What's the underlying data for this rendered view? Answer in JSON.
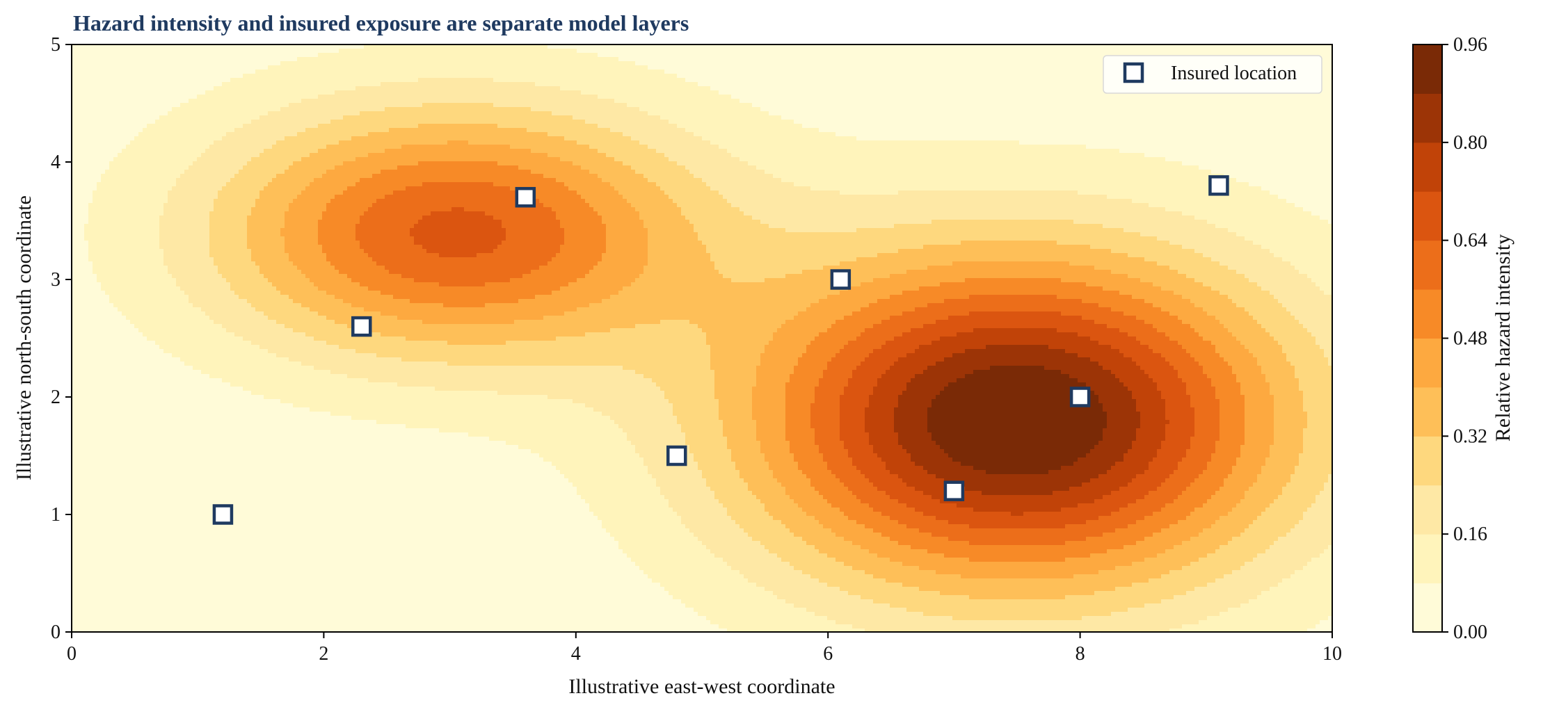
{
  "chart_data": {
    "type": "contour",
    "title": "Hazard intensity and insured exposure are separate model layers",
    "xlabel": "Illustrative east-west coordinate",
    "ylabel": "Illustrative north-south coordinate",
    "xlim": [
      0,
      10
    ],
    "ylim": [
      0,
      5
    ],
    "x_ticks": [
      "0",
      "2",
      "4",
      "6",
      "8",
      "10"
    ],
    "y_ticks": [
      "0",
      "1",
      "2",
      "3",
      "4",
      "5"
    ],
    "grid": false,
    "colorbar": {
      "label": "Relative hazard intensity",
      "range": [
        0,
        0.96
      ],
      "levels": [
        0,
        0.08,
        0.16,
        0.24,
        0.32,
        0.4,
        0.48,
        0.56,
        0.64,
        0.72,
        0.8,
        0.88,
        0.96
      ],
      "tick_labels": [
        "0.00",
        "0.16",
        "0.32",
        "0.48",
        "0.64",
        "0.80",
        "0.96"
      ],
      "colors": [
        "#fffbd8",
        "#fff4bb",
        "#fee8a5",
        "#fed87e",
        "#febf58",
        "#fda940",
        "#f78a27",
        "#ec6e1a",
        "#db5510",
        "#c14308",
        "#9c3406",
        "#7a2a06"
      ]
    },
    "hazard_field": {
      "description_units": "relative intensity",
      "hotspots": [
        {
          "cx": 7.5,
          "cy": 1.8,
          "peak": 0.96,
          "sx": 1.5,
          "sy": 1.0
        },
        {
          "cx": 3.05,
          "cy": 3.4,
          "peak": 0.64,
          "sx": 1.35,
          "sy": 0.75
        }
      ]
    },
    "legend": {
      "placement": "top-right",
      "entries": [
        "Insured location"
      ]
    },
    "series": [
      {
        "name": "Insured location",
        "marker": "square",
        "edge_color": "#1f3a60",
        "face_color": "#ffffff",
        "points": [
          {
            "x": 1.2,
            "y": 1.0
          },
          {
            "x": 2.3,
            "y": 2.6
          },
          {
            "x": 3.6,
            "y": 3.7
          },
          {
            "x": 4.8,
            "y": 1.5
          },
          {
            "x": 6.1,
            "y": 3.0
          },
          {
            "x": 7.0,
            "y": 1.2
          },
          {
            "x": 8.0,
            "y": 2.0
          },
          {
            "x": 9.1,
            "y": 3.8
          }
        ]
      }
    ]
  }
}
